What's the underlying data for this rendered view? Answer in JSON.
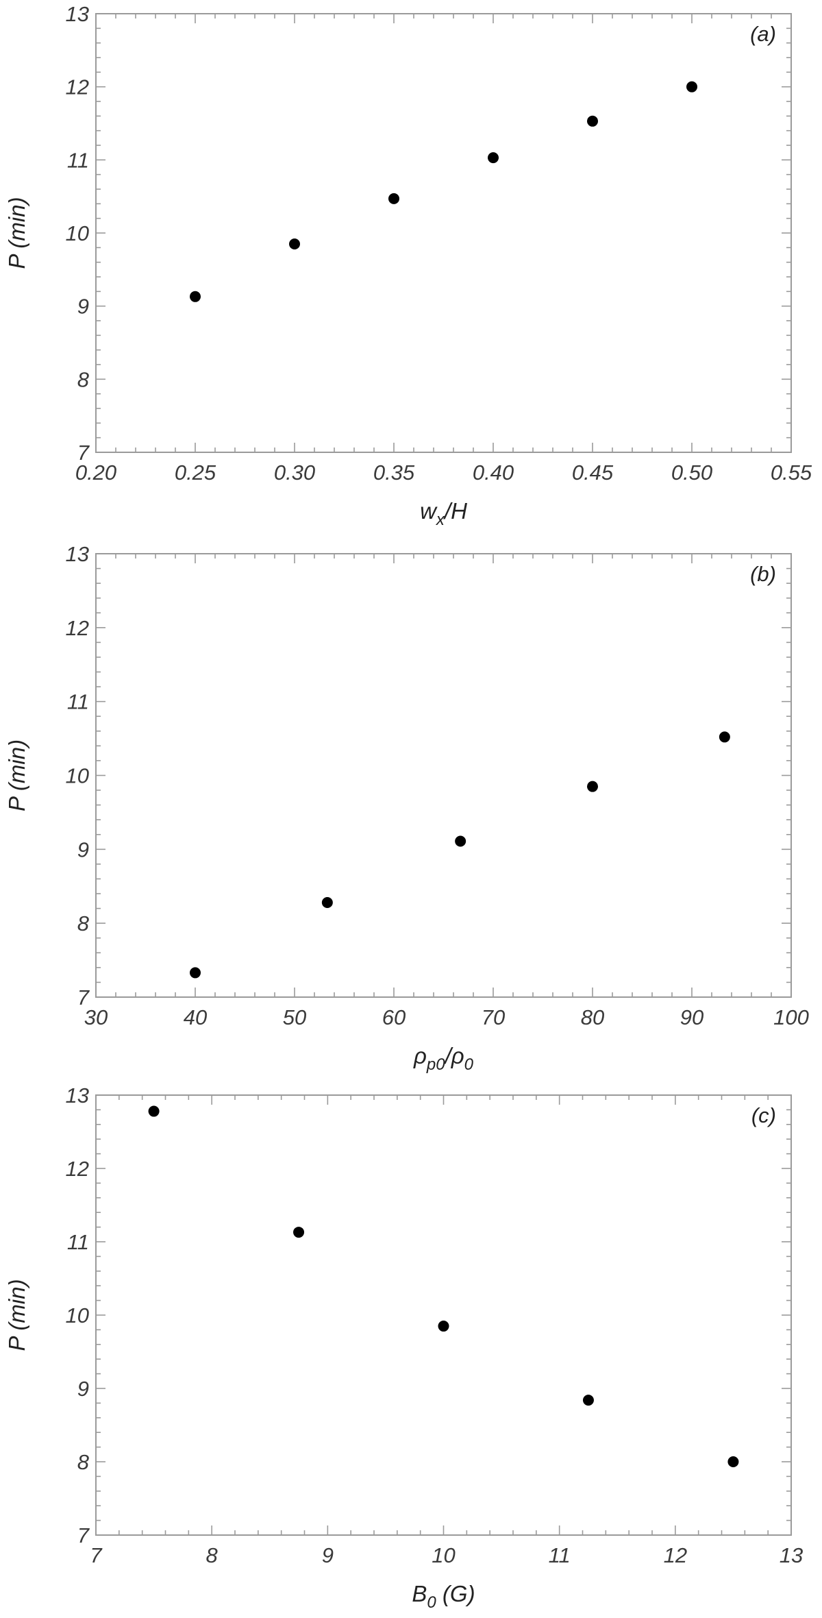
{
  "chart_data": [
    {
      "type": "scatter",
      "panel_label": "(a)",
      "xlabel": {
        "base": "w",
        "sub": "x",
        "rest": "/H"
      },
      "ylabel": "P (min)",
      "xlim": [
        0.2,
        0.55
      ],
      "ylim": [
        7,
        13
      ],
      "xticks": [
        0.2,
        0.25,
        0.3,
        0.35,
        0.4,
        0.45,
        0.5,
        0.55
      ],
      "xtick_labels": [
        "0.20",
        "0.25",
        "0.30",
        "0.35",
        "0.40",
        "0.45",
        "0.50",
        "0.55"
      ],
      "yticks": [
        7,
        8,
        9,
        10,
        11,
        12,
        13
      ],
      "ytick_labels": [
        "7",
        "8",
        "9",
        "10",
        "11",
        "12",
        "13"
      ],
      "grid": false,
      "color": "#000000",
      "x": [
        0.25,
        0.3,
        0.35,
        0.4,
        0.45,
        0.5
      ],
      "y": [
        9.13,
        9.85,
        10.47,
        11.03,
        11.53,
        12.0
      ]
    },
    {
      "type": "scatter",
      "panel_label": "(b)",
      "xlabel": {
        "base": "ρ",
        "sub": "p0",
        "rest": "/ρ",
        "sub2": "0"
      },
      "ylabel": "P (min)",
      "xlim": [
        30,
        100
      ],
      "ylim": [
        7,
        13
      ],
      "xticks": [
        30,
        40,
        50,
        60,
        70,
        80,
        90,
        100
      ],
      "xtick_labels": [
        "30",
        "40",
        "50",
        "60",
        "70",
        "80",
        "90",
        "100"
      ],
      "yticks": [
        7,
        8,
        9,
        10,
        11,
        12,
        13
      ],
      "ytick_labels": [
        "7",
        "8",
        "9",
        "10",
        "11",
        "12",
        "13"
      ],
      "grid": false,
      "color": "#000000",
      "x": [
        40,
        53.3,
        66.7,
        80,
        93.3
      ],
      "y": [
        7.33,
        8.28,
        9.11,
        9.85,
        10.52
      ]
    },
    {
      "type": "scatter",
      "panel_label": "(c)",
      "xlabel": {
        "base": "B",
        "sub": "0",
        "rest": " (G)"
      },
      "ylabel": "P (min)",
      "xlim": [
        7,
        13
      ],
      "ylim": [
        7,
        13
      ],
      "xticks": [
        7,
        8,
        9,
        10,
        11,
        12,
        13
      ],
      "xtick_labels": [
        "7",
        "8",
        "9",
        "10",
        "11",
        "12",
        "13"
      ],
      "yticks": [
        7,
        8,
        9,
        10,
        11,
        12,
        13
      ],
      "ytick_labels": [
        "7",
        "8",
        "9",
        "10",
        "11",
        "12",
        "13"
      ],
      "grid": false,
      "color": "#000000",
      "x": [
        7.5,
        8.75,
        10.0,
        11.25,
        12.5
      ],
      "y": [
        12.78,
        11.13,
        9.85,
        8.84,
        8.0
      ]
    }
  ]
}
